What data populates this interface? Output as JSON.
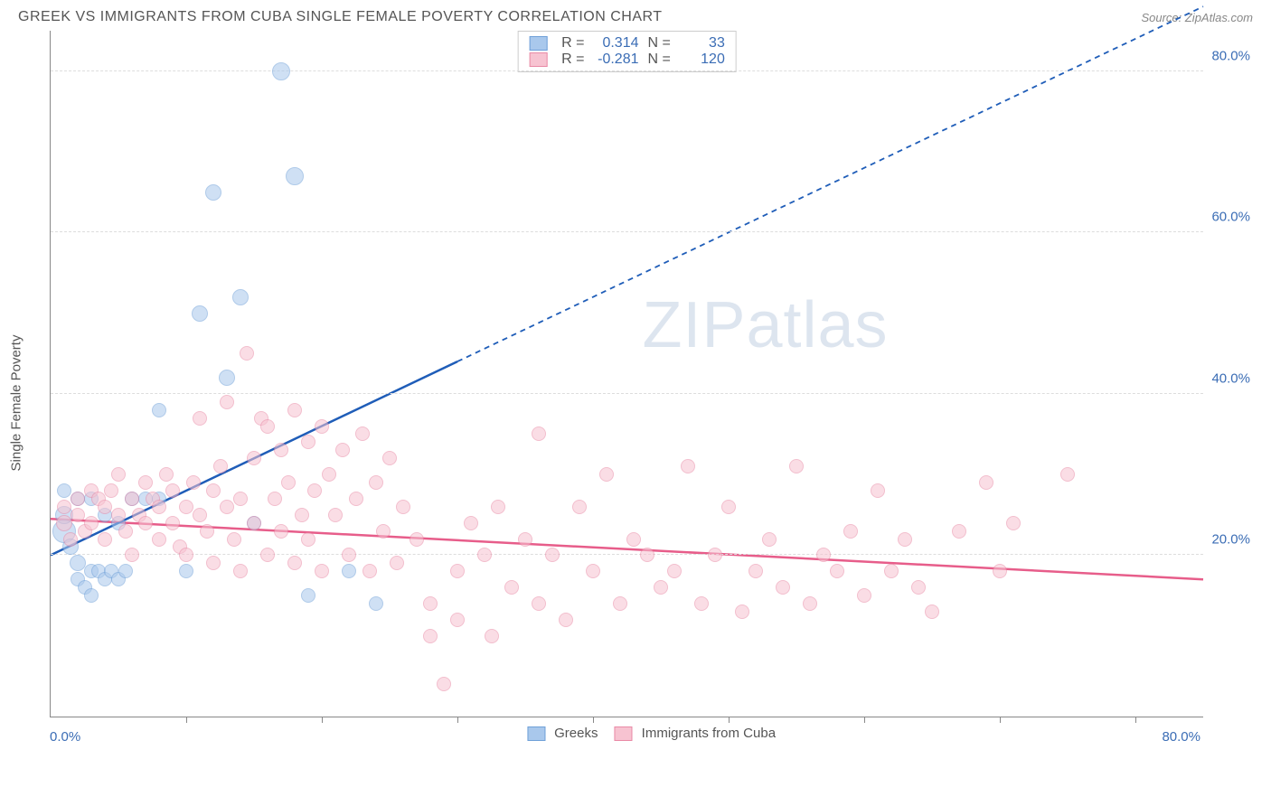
{
  "title": "GREEK VS IMMIGRANTS FROM CUBA SINGLE FEMALE POVERTY CORRELATION CHART",
  "source": "Source: ZipAtlas.com",
  "ylabel": "Single Female Poverty",
  "watermark": "ZIPatlas",
  "chart": {
    "type": "scatter",
    "xlim": [
      0,
      85
    ],
    "ylim": [
      0,
      85
    ],
    "y_ticks": [
      20,
      40,
      60,
      80
    ],
    "y_tick_labels": [
      "20.0%",
      "40.0%",
      "60.0%",
      "80.0%"
    ],
    "x_ticks": [
      10,
      20,
      30,
      40,
      50,
      60,
      70,
      80
    ],
    "x_min_label": "0.0%",
    "x_max_label": "80.0%",
    "grid_color": "#dddddd",
    "axis_color": "#888888",
    "background_color": "#ffffff",
    "marker_radius_range": [
      7,
      13
    ],
    "marker_opacity": 0.55,
    "marker_border_width": 1.2
  },
  "series": [
    {
      "name": "Greeks",
      "color_fill": "#a9c8ec",
      "color_border": "#6fa0d8",
      "color_line": "#1f5db8",
      "R": "0.314",
      "N": "33",
      "trend": {
        "x1": 0,
        "y1": 20,
        "x2": 30,
        "y2": 44,
        "dash_x2": 85,
        "dash_y2": 88
      },
      "points": [
        [
          1,
          23,
          13
        ],
        [
          1,
          25,
          10
        ],
        [
          1.5,
          21,
          9
        ],
        [
          2,
          19,
          9
        ],
        [
          2,
          17,
          8
        ],
        [
          2.5,
          16,
          8
        ],
        [
          3,
          18,
          8
        ],
        [
          3,
          15,
          8
        ],
        [
          3.5,
          18,
          8
        ],
        [
          4,
          17,
          8
        ],
        [
          4.5,
          18,
          8
        ],
        [
          5,
          17,
          8
        ],
        [
          5.5,
          18,
          8
        ],
        [
          1,
          28,
          8
        ],
        [
          2,
          27,
          8
        ],
        [
          3,
          27,
          8
        ],
        [
          4,
          25,
          8
        ],
        [
          5,
          24,
          8
        ],
        [
          6,
          27,
          8
        ],
        [
          7,
          27,
          8
        ],
        [
          8,
          38,
          8
        ],
        [
          8,
          27,
          8
        ],
        [
          10,
          18,
          8
        ],
        [
          11,
          50,
          9
        ],
        [
          12,
          65,
          9
        ],
        [
          13,
          42,
          9
        ],
        [
          14,
          52,
          9
        ],
        [
          15,
          24,
          8
        ],
        [
          17,
          80,
          10
        ],
        [
          18,
          67,
          10
        ],
        [
          19,
          15,
          8
        ],
        [
          22,
          18,
          8
        ],
        [
          24,
          14,
          8
        ]
      ]
    },
    {
      "name": "Immigrants from Cuba",
      "color_fill": "#f7c3d1",
      "color_border": "#e98aa6",
      "color_line": "#e75d8a",
      "R": "-0.281",
      "N": "120",
      "trend": {
        "x1": 0,
        "y1": 24.5,
        "x2": 85,
        "y2": 17
      },
      "points": [
        [
          1,
          24,
          9
        ],
        [
          1,
          26,
          8
        ],
        [
          1.5,
          22,
          8
        ],
        [
          2,
          25,
          8
        ],
        [
          2,
          27,
          8
        ],
        [
          2.5,
          23,
          8
        ],
        [
          3,
          28,
          8
        ],
        [
          3,
          24,
          8
        ],
        [
          3.5,
          27,
          8
        ],
        [
          4,
          26,
          8
        ],
        [
          4,
          22,
          8
        ],
        [
          4.5,
          28,
          8
        ],
        [
          5,
          25,
          8
        ],
        [
          5,
          30,
          8
        ],
        [
          5.5,
          23,
          8
        ],
        [
          6,
          27,
          8
        ],
        [
          6,
          20,
          8
        ],
        [
          6.5,
          25,
          8
        ],
        [
          7,
          29,
          8
        ],
        [
          7,
          24,
          8
        ],
        [
          7.5,
          27,
          8
        ],
        [
          8,
          26,
          8
        ],
        [
          8,
          22,
          8
        ],
        [
          8.5,
          30,
          8
        ],
        [
          9,
          24,
          8
        ],
        [
          9,
          28,
          8
        ],
        [
          9.5,
          21,
          8
        ],
        [
          10,
          26,
          8
        ],
        [
          10,
          20,
          8
        ],
        [
          10.5,
          29,
          8
        ],
        [
          11,
          25,
          8
        ],
        [
          11,
          37,
          8
        ],
        [
          11.5,
          23,
          8
        ],
        [
          12,
          28,
          8
        ],
        [
          12,
          19,
          8
        ],
        [
          12.5,
          31,
          8
        ],
        [
          13,
          26,
          8
        ],
        [
          13,
          39,
          8
        ],
        [
          13.5,
          22,
          8
        ],
        [
          14,
          27,
          8
        ],
        [
          14,
          18,
          8
        ],
        [
          14.5,
          45,
          8
        ],
        [
          15,
          32,
          8
        ],
        [
          15,
          24,
          8
        ],
        [
          15.5,
          37,
          8
        ],
        [
          16,
          20,
          8
        ],
        [
          16,
          36,
          8
        ],
        [
          16.5,
          27,
          8
        ],
        [
          17,
          33,
          8
        ],
        [
          17,
          23,
          8
        ],
        [
          17.5,
          29,
          8
        ],
        [
          18,
          38,
          8
        ],
        [
          18,
          19,
          8
        ],
        [
          18.5,
          25,
          8
        ],
        [
          19,
          34,
          8
        ],
        [
          19,
          22,
          8
        ],
        [
          19.5,
          28,
          8
        ],
        [
          20,
          36,
          8
        ],
        [
          20,
          18,
          8
        ],
        [
          20.5,
          30,
          8
        ],
        [
          21,
          25,
          8
        ],
        [
          21.5,
          33,
          8
        ],
        [
          22,
          20,
          8
        ],
        [
          22.5,
          27,
          8
        ],
        [
          23,
          35,
          8
        ],
        [
          23.5,
          18,
          8
        ],
        [
          24,
          29,
          8
        ],
        [
          24.5,
          23,
          8
        ],
        [
          25,
          32,
          8
        ],
        [
          25.5,
          19,
          8
        ],
        [
          26,
          26,
          8
        ],
        [
          27,
          22,
          8
        ],
        [
          28,
          14,
          8
        ],
        [
          28,
          10,
          8
        ],
        [
          29,
          4,
          8
        ],
        [
          30,
          18,
          8
        ],
        [
          30,
          12,
          8
        ],
        [
          31,
          24,
          8
        ],
        [
          32,
          20,
          8
        ],
        [
          32.5,
          10,
          8
        ],
        [
          33,
          26,
          8
        ],
        [
          34,
          16,
          8
        ],
        [
          35,
          22,
          8
        ],
        [
          36,
          14,
          8
        ],
        [
          36,
          35,
          8
        ],
        [
          37,
          20,
          8
        ],
        [
          38,
          12,
          8
        ],
        [
          39,
          26,
          8
        ],
        [
          40,
          18,
          8
        ],
        [
          41,
          30,
          8
        ],
        [
          42,
          14,
          8
        ],
        [
          43,
          22,
          8
        ],
        [
          44,
          20,
          8
        ],
        [
          45,
          16,
          8
        ],
        [
          46,
          18,
          8
        ],
        [
          47,
          31,
          8
        ],
        [
          48,
          14,
          8
        ],
        [
          49,
          20,
          8
        ],
        [
          50,
          26,
          8
        ],
        [
          51,
          13,
          8
        ],
        [
          52,
          18,
          8
        ],
        [
          53,
          22,
          8
        ],
        [
          54,
          16,
          8
        ],
        [
          55,
          31,
          8
        ],
        [
          56,
          14,
          8
        ],
        [
          57,
          20,
          8
        ],
        [
          58,
          18,
          8
        ],
        [
          59,
          23,
          8
        ],
        [
          60,
          15,
          8
        ],
        [
          61,
          28,
          8
        ],
        [
          62,
          18,
          8
        ],
        [
          63,
          22,
          8
        ],
        [
          64,
          16,
          8
        ],
        [
          65,
          13,
          8
        ],
        [
          67,
          23,
          8
        ],
        [
          69,
          29,
          8
        ],
        [
          70,
          18,
          8
        ],
        [
          71,
          24,
          8
        ],
        [
          75,
          30,
          8
        ]
      ]
    }
  ],
  "legend": {
    "items": [
      {
        "label": "Greeks",
        "fill": "#a9c8ec",
        "border": "#6fa0d8"
      },
      {
        "label": "Immigrants from Cuba",
        "fill": "#f7c3d1",
        "border": "#e98aa6"
      }
    ]
  }
}
